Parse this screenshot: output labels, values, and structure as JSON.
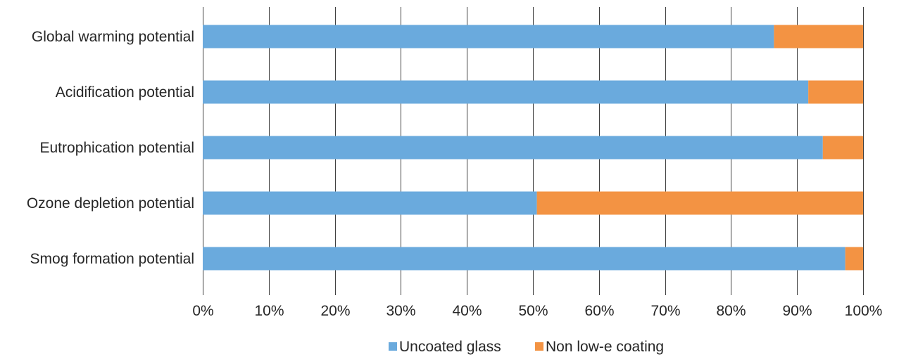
{
  "chart_data": {
    "type": "bar",
    "orientation": "horizontal",
    "stacked": true,
    "categories": [
      "Global warming potential",
      "Acidification potential",
      "Eutrophication potential",
      "Ozone depletion potential",
      "Smog formation potential"
    ],
    "series": [
      {
        "name": "Uncoated glass",
        "color": "#6aaadd",
        "values": [
          86.5,
          91.7,
          93.9,
          50.6,
          97.3
        ]
      },
      {
        "name": "Non low-e coating",
        "color": "#f39343",
        "values": [
          13.5,
          8.3,
          6.1,
          49.4,
          2.7
        ]
      }
    ],
    "x_ticks": [
      "0%",
      "10%",
      "20%",
      "30%",
      "40%",
      "50%",
      "60%",
      "70%",
      "80%",
      "90%",
      "100%"
    ],
    "xlim": [
      0,
      100
    ],
    "grid": true,
    "legend_position": "bottom",
    "title": "",
    "xlabel": "",
    "ylabel": ""
  }
}
